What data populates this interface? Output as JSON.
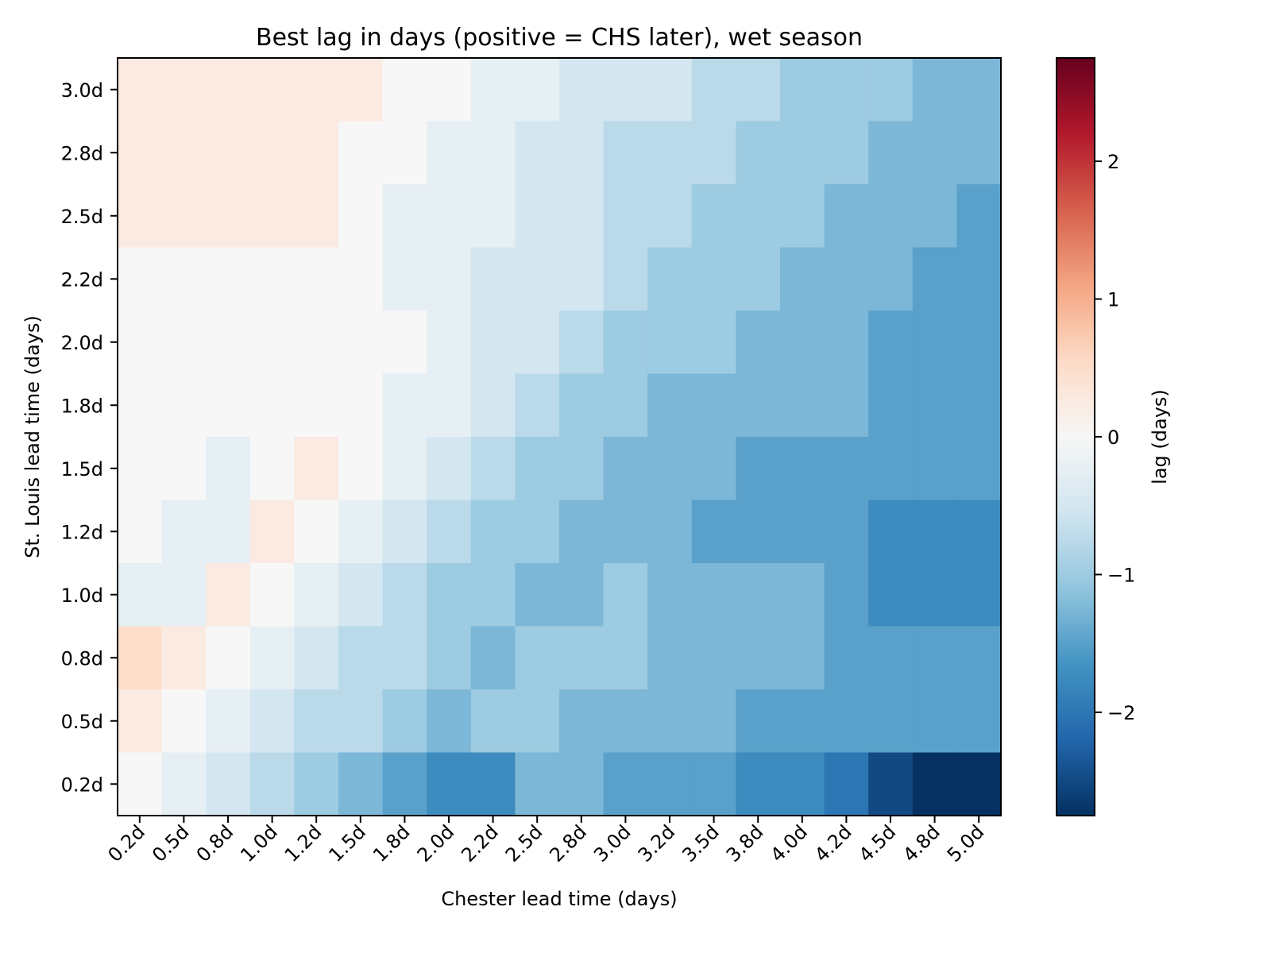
{
  "chart_data": {
    "type": "heatmap",
    "title": "Best lag in days (positive = CHS later), wet season",
    "xlabel": "Chester lead time (days)",
    "ylabel": "St. Louis lead time (days)",
    "x_ticks": [
      "0.2d",
      "0.5d",
      "0.8d",
      "1.0d",
      "1.2d",
      "1.5d",
      "1.8d",
      "2.0d",
      "2.2d",
      "2.5d",
      "2.8d",
      "3.0d",
      "3.2d",
      "3.5d",
      "3.8d",
      "4.0d",
      "4.2d",
      "4.5d",
      "4.8d",
      "5.0d"
    ],
    "y_ticks": [
      "3.0d",
      "2.8d",
      "2.5d",
      "2.2d",
      "2.0d",
      "1.8d",
      "1.5d",
      "1.2d",
      "1.0d",
      "0.8d",
      "0.5d",
      "0.2d"
    ],
    "colormap": "RdBu_r",
    "vmin": -2.75,
    "vmax": 2.75,
    "colorbar": {
      "label": "lag (days)",
      "ticks": [
        2,
        1,
        0,
        -1,
        -2
      ],
      "tick_labels": [
        "2",
        "1",
        "0",
        "−1",
        "−2"
      ]
    },
    "values": [
      [
        0.25,
        0.25,
        0.25,
        0.25,
        0.25,
        0.25,
        0.0,
        0.0,
        -0.25,
        -0.25,
        -0.5,
        -0.5,
        -0.5,
        -0.75,
        -0.75,
        -1.0,
        -1.0,
        -1.0,
        -1.25,
        -1.25
      ],
      [
        0.25,
        0.25,
        0.25,
        0.25,
        0.25,
        0.0,
        0.0,
        -0.25,
        -0.25,
        -0.5,
        -0.5,
        -0.75,
        -0.75,
        -0.75,
        -1.0,
        -1.0,
        -1.0,
        -1.25,
        -1.25,
        -1.25
      ],
      [
        0.25,
        0.25,
        0.25,
        0.25,
        0.25,
        0.0,
        -0.25,
        -0.25,
        -0.25,
        -0.5,
        -0.5,
        -0.75,
        -0.75,
        -1.0,
        -1.0,
        -1.0,
        -1.25,
        -1.25,
        -1.25,
        -1.5
      ],
      [
        0.0,
        0.0,
        0.0,
        0.0,
        0.0,
        0.0,
        -0.25,
        -0.25,
        -0.5,
        -0.5,
        -0.5,
        -0.75,
        -1.0,
        -1.0,
        -1.0,
        -1.25,
        -1.25,
        -1.25,
        -1.5,
        -1.5
      ],
      [
        0.0,
        0.0,
        0.0,
        0.0,
        0.0,
        0.0,
        0.0,
        -0.25,
        -0.5,
        -0.5,
        -0.75,
        -1.0,
        -1.0,
        -1.0,
        -1.25,
        -1.25,
        -1.25,
        -1.5,
        -1.5,
        -1.5
      ],
      [
        0.0,
        0.0,
        0.0,
        0.0,
        0.0,
        0.0,
        -0.25,
        -0.25,
        -0.5,
        -0.75,
        -1.0,
        -1.0,
        -1.25,
        -1.25,
        -1.25,
        -1.25,
        -1.25,
        -1.5,
        -1.5,
        -1.5
      ],
      [
        0.0,
        0.0,
        -0.25,
        0.0,
        0.25,
        0.0,
        -0.25,
        -0.5,
        -0.75,
        -1.0,
        -1.0,
        -1.25,
        -1.25,
        -1.25,
        -1.5,
        -1.5,
        -1.5,
        -1.5,
        -1.5,
        -1.5
      ],
      [
        0.0,
        -0.25,
        -0.25,
        0.25,
        0.0,
        -0.25,
        -0.5,
        -0.75,
        -1.0,
        -1.0,
        -1.25,
        -1.25,
        -1.25,
        -1.5,
        -1.5,
        -1.5,
        -1.5,
        -1.75,
        -1.75,
        -1.75
      ],
      [
        -0.25,
        -0.25,
        0.25,
        0.0,
        -0.25,
        -0.5,
        -0.75,
        -1.0,
        -1.0,
        -1.25,
        -1.25,
        -1.0,
        -1.25,
        -1.25,
        -1.25,
        -1.25,
        -1.5,
        -1.75,
        -1.75,
        -1.75
      ],
      [
        0.5,
        0.25,
        0.0,
        -0.25,
        -0.5,
        -0.75,
        -0.75,
        -1.0,
        -1.25,
        -1.0,
        -1.0,
        -1.0,
        -1.25,
        -1.25,
        -1.25,
        -1.25,
        -1.5,
        -1.5,
        -1.5,
        -1.5
      ],
      [
        0.25,
        0.0,
        -0.25,
        -0.5,
        -0.75,
        -0.75,
        -1.0,
        -1.25,
        -1.0,
        -1.0,
        -1.25,
        -1.25,
        -1.25,
        -1.25,
        -1.5,
        -1.5,
        -1.5,
        -1.5,
        -1.5,
        -1.5
      ],
      [
        0.0,
        -0.25,
        -0.5,
        -0.75,
        -1.0,
        -1.25,
        -1.5,
        -1.75,
        -1.75,
        -1.25,
        -1.25,
        -1.5,
        -1.5,
        -1.5,
        -1.75,
        -1.75,
        -2.0,
        -2.5,
        -2.75,
        -2.75
      ]
    ]
  }
}
